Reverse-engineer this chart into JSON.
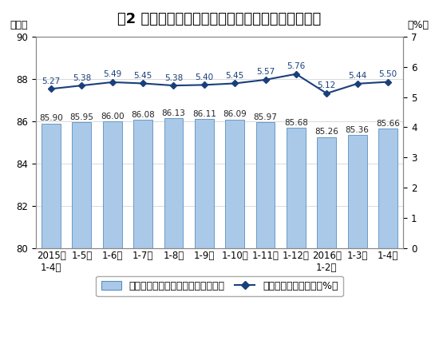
{
  "title": "图2 各月累计利润率与每百元主营业务收入中的成本",
  "categories": [
    "2015年\n1-4月",
    "1-5月",
    "1-6月",
    "1-7月",
    "1-8月",
    "1-9月",
    "1-10月",
    "1-11月",
    "1-12月",
    "2016年\n1-2月",
    "1-3月",
    "1-4月"
  ],
  "bar_values": [
    85.9,
    85.95,
    86.0,
    86.08,
    86.13,
    86.11,
    86.09,
    85.97,
    85.68,
    85.26,
    85.36,
    85.66
  ],
  "line_values": [
    5.27,
    5.38,
    5.49,
    5.45,
    5.38,
    5.4,
    5.45,
    5.57,
    5.76,
    5.12,
    5.44,
    5.5
  ],
  "bar_color": "#aac9e8",
  "bar_edge_color": "#5a8fc0",
  "line_color": "#1a3f7a",
  "marker_face_color": "#1a3f7a",
  "left_ylabel": "（元）",
  "right_ylabel": "（%）",
  "ylim_left": [
    80,
    90
  ],
  "ylim_right": [
    0,
    7
  ],
  "yticks_left": [
    80,
    82,
    84,
    86,
    88,
    90
  ],
  "yticks_right": [
    0,
    1,
    2,
    3,
    4,
    5,
    6,
    7
  ],
  "legend_bar_label": "每百元主营业务收入中的成本（元）",
  "legend_line_label": "主营业务收入利润率（%）",
  "background_color": "#ffffff",
  "grid_color": "#cccccc",
  "title_fontsize": 13,
  "tick_fontsize": 8.5,
  "value_fontsize": 7.5,
  "legend_fontsize": 9
}
